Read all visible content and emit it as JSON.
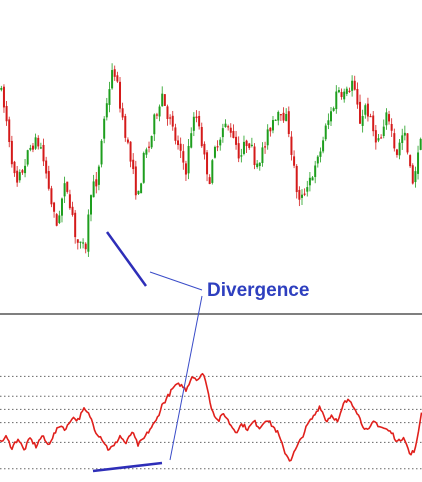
{
  "colors": {
    "up": "#1e9e1e",
    "down": "#d41a1a",
    "oscillator": "#e0201c",
    "divergence_lines": "#2e2eb8",
    "annotation": "#2e3fbf",
    "leader_lines": "#3a4cc8",
    "panel_divider": "#555555",
    "grid": "#666666"
  },
  "chart_data": [
    {
      "type": "candlestick",
      "title": "",
      "xlabel": "",
      "ylabel": "",
      "n_bars": 160,
      "ylim": [
        0,
        100
      ],
      "close_trajectory": [
        [
          0,
          72
        ],
        [
          8,
          57
        ],
        [
          16,
          36
        ],
        [
          24,
          44
        ],
        [
          32,
          52
        ],
        [
          40,
          52
        ],
        [
          48,
          38
        ],
        [
          56,
          22
        ],
        [
          60,
          29
        ],
        [
          66,
          38
        ],
        [
          72,
          28
        ],
        [
          76,
          18
        ],
        [
          82,
          14
        ],
        [
          86,
          16
        ],
        [
          92,
          40
        ],
        [
          96,
          34
        ],
        [
          102,
          55
        ],
        [
          108,
          70
        ],
        [
          114,
          79
        ],
        [
          120,
          66
        ],
        [
          126,
          55
        ],
        [
          132,
          43
        ],
        [
          138,
          32
        ],
        [
          144,
          47
        ],
        [
          150,
          52
        ],
        [
          156,
          63
        ],
        [
          162,
          70
        ],
        [
          168,
          62
        ],
        [
          174,
          55
        ],
        [
          180,
          48
        ],
        [
          186,
          43
        ],
        [
          192,
          59
        ],
        [
          198,
          62
        ],
        [
          204,
          47
        ],
        [
          210,
          39
        ],
        [
          216,
          52
        ],
        [
          224,
          58
        ],
        [
          232,
          57
        ],
        [
          240,
          47
        ],
        [
          248,
          54
        ],
        [
          256,
          45
        ],
        [
          264,
          50
        ],
        [
          272,
          60
        ],
        [
          280,
          65
        ],
        [
          288,
          59
        ],
        [
          296,
          37
        ],
        [
          300,
          30
        ],
        [
          308,
          39
        ],
        [
          316,
          43
        ],
        [
          324,
          55
        ],
        [
          332,
          64
        ],
        [
          338,
          72
        ],
        [
          346,
          69
        ],
        [
          352,
          74
        ],
        [
          360,
          60
        ],
        [
          366,
          66
        ],
        [
          372,
          57
        ],
        [
          380,
          52
        ],
        [
          388,
          63
        ],
        [
          396,
          48
        ],
        [
          404,
          56
        ],
        [
          412,
          38
        ],
        [
          418,
          47
        ],
        [
          422,
          60
        ]
      ]
    },
    {
      "type": "line",
      "title": "",
      "xlabel": "",
      "ylabel": "",
      "ylim": [
        0,
        100
      ],
      "grid_levels": [
        10,
        30,
        45,
        55,
        65,
        80
      ],
      "series": [
        {
          "points": [
            [
              0,
              30
            ],
            [
              6,
              34
            ],
            [
              12,
              26
            ],
            [
              18,
              33
            ],
            [
              24,
              24
            ],
            [
              30,
              33
            ],
            [
              36,
              27
            ],
            [
              42,
              35
            ],
            [
              48,
              28
            ],
            [
              54,
              36
            ],
            [
              60,
              43
            ],
            [
              66,
              40
            ],
            [
              72,
              49
            ],
            [
              78,
              47
            ],
            [
              84,
              55
            ],
            [
              90,
              50
            ],
            [
              96,
              38
            ],
            [
              102,
              33
            ],
            [
              108,
              25
            ],
            [
              114,
              27
            ],
            [
              120,
              35
            ],
            [
              126,
              29
            ],
            [
              132,
              38
            ],
            [
              138,
              28
            ],
            [
              144,
              33
            ],
            [
              150,
              40
            ],
            [
              156,
              46
            ],
            [
              162,
              58
            ],
            [
              168,
              65
            ],
            [
              174,
              72
            ],
            [
              180,
              74
            ],
            [
              186,
              70
            ],
            [
              192,
              80
            ],
            [
              198,
              78
            ],
            [
              204,
              82
            ],
            [
              208,
              68
            ],
            [
              212,
              55
            ],
            [
              218,
              46
            ],
            [
              224,
              52
            ],
            [
              230,
              44
            ],
            [
              236,
              38
            ],
            [
              242,
              44
            ],
            [
              248,
              40
            ],
            [
              254,
              46
            ],
            [
              260,
              41
            ],
            [
              266,
              48
            ],
            [
              272,
              43
            ],
            [
              278,
              37
            ],
            [
              284,
              24
            ],
            [
              290,
              16
            ],
            [
              296,
              25
            ],
            [
              302,
              34
            ],
            [
              308,
              44
            ],
            [
              314,
              50
            ],
            [
              320,
              58
            ],
            [
              326,
              46
            ],
            [
              332,
              51
            ],
            [
              338,
              45
            ],
            [
              344,
              60
            ],
            [
              350,
              62
            ],
            [
              356,
              55
            ],
            [
              362,
              44
            ],
            [
              368,
              38
            ],
            [
              374,
              46
            ],
            [
              380,
              42
            ],
            [
              386,
              40
            ],
            [
              392,
              37
            ],
            [
              398,
              30
            ],
            [
              404,
              35
            ],
            [
              410,
              20
            ],
            [
              416,
              26
            ],
            [
              422,
              56
            ]
          ]
        }
      ]
    }
  ],
  "annotation": {
    "label": "Divergence"
  }
}
